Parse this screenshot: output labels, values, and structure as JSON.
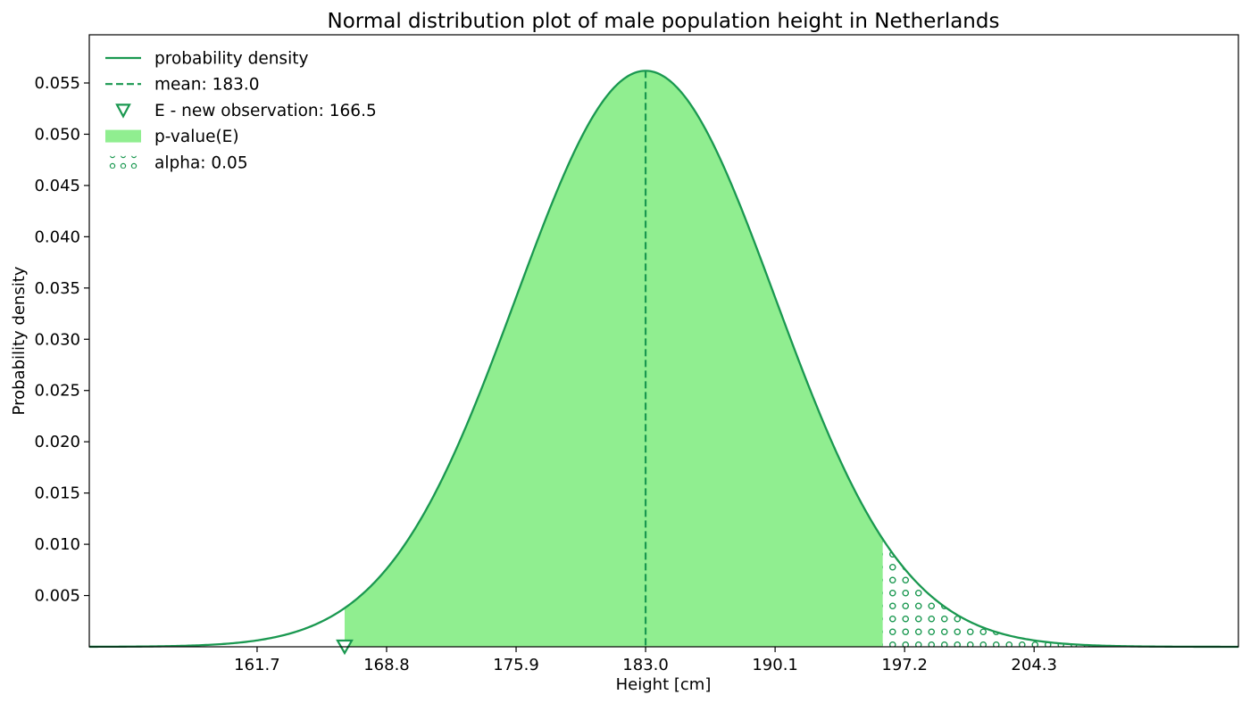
{
  "chart_data": {
    "type": "area",
    "title": "Normal distribution plot of male population height in Netherlands",
    "xlabel": "Height [cm]",
    "ylabel": "Probability density",
    "distribution": {
      "mean": 183.0,
      "std": 7.1
    },
    "xlim": [
      152.5,
      215.5
    ],
    "ylim": [
      0,
      0.0597
    ],
    "xticks": [
      161.7,
      168.8,
      175.9,
      183.0,
      190.1,
      197.2,
      204.3
    ],
    "yticks": [
      0.005,
      0.01,
      0.015,
      0.02,
      0.025,
      0.03,
      0.035,
      0.04,
      0.045,
      0.05,
      0.055
    ],
    "observation": 166.5,
    "alpha": 0.05,
    "alpha_critical_x": 196.0,
    "pvalue_region": [
      166.5,
      196.0
    ],
    "legend_position": "upper-left",
    "colors": {
      "line": "#1a9850",
      "fill": "#90ee90",
      "marker": "#1a9850"
    },
    "legend": [
      {
        "kind": "line",
        "label": "probability density"
      },
      {
        "kind": "dashed",
        "label": "mean: 183.0"
      },
      {
        "kind": "marker",
        "label": "E - new observation: 166.5"
      },
      {
        "kind": "fill",
        "label": "p-value(E)"
      },
      {
        "kind": "hatch",
        "label": "alpha: 0.05"
      }
    ]
  }
}
